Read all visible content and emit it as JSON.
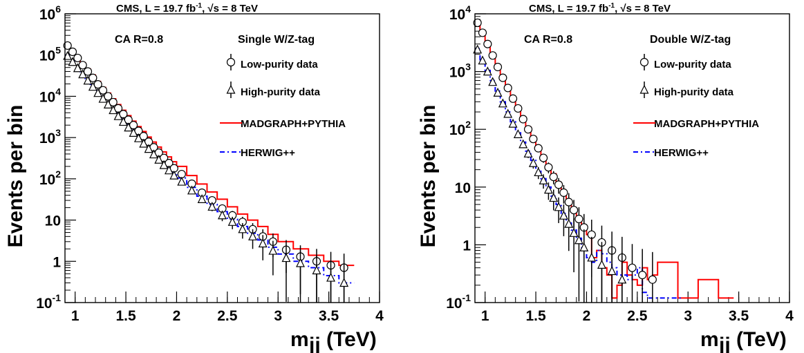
{
  "chart_data": [
    {
      "type": "line",
      "header": "CMS, L = 19.7 fb⁻¹, √s = 8 TeV",
      "ylabel": "Events per bin",
      "xlabel": "m_jj (TeV)",
      "yscale": "log",
      "ylim": [
        0.1,
        1000000
      ],
      "xlim": [
        0.9,
        4.0
      ],
      "xticks": [
        "1",
        "1.5",
        "2",
        "2.5",
        "3",
        "3.5",
        "4"
      ],
      "algo_label": "CA R=0.8",
      "tag_label": "Single W/Z-tag",
      "legend": [
        "Low-purity data",
        "High-purity data",
        "MADGRAPH+PYTHIA",
        "HERWIG++"
      ],
      "bin_edges": [
        0.9,
        0.95,
        1.0,
        1.05,
        1.1,
        1.15,
        1.2,
        1.25,
        1.3,
        1.35,
        1.4,
        1.45,
        1.5,
        1.55,
        1.6,
        1.65,
        1.7,
        1.75,
        1.8,
        1.85,
        1.9,
        1.95,
        2.0,
        2.05,
        2.1,
        2.15,
        2.2,
        2.25,
        2.3,
        2.35,
        2.4,
        2.45,
        2.5,
        2.55,
        2.6,
        2.65,
        2.7,
        2.75,
        2.8,
        2.85,
        2.9,
        2.95,
        3.0,
        3.05,
        3.1,
        3.15,
        3.2,
        3.25,
        3.3,
        3.35,
        3.4,
        3.45,
        3.5,
        3.55,
        3.6,
        3.65,
        3.7,
        3.75,
        3.8,
        3.85,
        3.9,
        3.95,
        4.0
      ],
      "series": [
        {
          "name": "Low-purity data",
          "x": [
            0.9,
            0.95,
            1.0,
            1.05,
            1.1,
            1.15,
            1.2,
            1.25,
            1.3,
            1.35,
            1.4,
            1.45,
            1.5,
            1.55,
            1.6,
            1.65,
            1.7,
            1.75,
            1.8,
            1.85,
            1.9,
            1.95,
            2.0,
            2.1,
            2.2,
            2.3,
            2.4,
            2.5,
            2.6,
            2.7,
            2.8,
            2.9,
            3.0,
            3.15,
            3.3,
            3.45,
            3.6
          ],
          "y": [
            160000,
            120000,
            85000,
            60000,
            42000,
            30000,
            21000,
            15000,
            11000,
            8000,
            5800,
            4200,
            3100,
            2300,
            1700,
            1300,
            950,
            720,
            540,
            410,
            310,
            240,
            185,
            110,
            68,
            45,
            30,
            20,
            12,
            10,
            6,
            4,
            2.5,
            1.6,
            1.2,
            1.0,
            0.8
          ]
        },
        {
          "name": "High-purity data",
          "x": [
            0.9,
            0.95,
            1.0,
            1.05,
            1.1,
            1.15,
            1.2,
            1.25,
            1.3,
            1.35,
            1.4,
            1.45,
            1.5,
            1.55,
            1.6,
            1.65,
            1.7,
            1.75,
            1.8,
            1.85,
            1.9,
            1.95,
            2.0,
            2.1,
            2.2,
            2.3,
            2.4,
            2.5,
            2.6,
            2.7,
            2.8,
            2.9,
            3.0,
            3.15,
            3.3,
            3.45,
            3.6
          ],
          "y": [
            95000,
            70000,
            50000,
            35000,
            25000,
            18000,
            13000,
            9300,
            6800,
            5000,
            3600,
            2600,
            1900,
            1400,
            1050,
            780,
            580,
            430,
            320,
            240,
            180,
            135,
            100,
            60,
            38,
            25,
            17,
            11,
            7,
            5,
            3.5,
            2.3,
            1.5,
            1.0,
            0.6,
            0.4,
            0.3
          ]
        },
        {
          "name": "MADGRAPH+PYTHIA",
          "x": [
            0.9,
            0.95,
            1.0,
            1.05,
            1.1,
            1.15,
            1.2,
            1.25,
            1.3,
            1.35,
            1.4,
            1.45,
            1.5,
            1.55,
            1.6,
            1.65,
            1.7,
            1.75,
            1.8,
            1.85,
            1.9,
            1.95,
            2.0,
            2.1,
            2.2,
            2.3,
            2.4,
            2.5,
            2.6,
            2.7,
            2.8,
            2.9,
            3.0,
            3.15,
            3.3,
            3.45,
            3.6
          ],
          "y": [
            180000,
            130000,
            92000,
            65000,
            46000,
            33000,
            23000,
            16500,
            12000,
            8700,
            6300,
            4600,
            3400,
            2500,
            1850,
            1400,
            1030,
            780,
            590,
            450,
            340,
            260,
            200,
            120,
            75,
            48,
            32,
            21,
            14,
            10,
            7,
            4.5,
            3,
            2,
            1.4,
            1.0,
            0.8
          ]
        },
        {
          "name": "HERWIG++",
          "x": [
            0.9,
            0.95,
            1.0,
            1.05,
            1.1,
            1.15,
            1.2,
            1.25,
            1.3,
            1.35,
            1.4,
            1.45,
            1.5,
            1.55,
            1.6,
            1.65,
            1.7,
            1.75,
            1.8,
            1.85,
            1.9,
            1.95,
            2.0,
            2.1,
            2.2,
            2.3,
            2.4,
            2.5,
            2.6,
            2.7,
            2.8,
            2.9,
            3.0,
            3.15,
            3.3,
            3.45,
            3.6
          ],
          "y": [
            100000,
            75000,
            54000,
            38000,
            27000,
            19500,
            14000,
            10000,
            7300,
            5300,
            3900,
            2800,
            2050,
            1500,
            1100,
            820,
            610,
            450,
            335,
            250,
            185,
            140,
            105,
            62,
            38,
            24,
            16,
            10.5,
            7,
            4.8,
            3.3,
            2.2,
            1.5,
            1.0,
            0.7,
            0.45,
            0.3
          ]
        }
      ],
      "points_low": {
        "x": [
          0.925,
          0.975,
          1.025,
          1.075,
          1.125,
          1.175,
          1.225,
          1.275,
          1.325,
          1.375,
          1.425,
          1.475,
          1.525,
          1.575,
          1.625,
          1.675,
          1.725,
          1.775,
          1.825,
          1.875,
          1.925,
          1.975,
          2.05,
          2.15,
          2.25,
          2.35,
          2.45,
          2.55,
          2.65,
          2.75,
          2.85,
          2.95,
          3.08,
          3.22,
          3.38,
          3.52,
          3.65
        ],
        "y": [
          170000,
          120000,
          85000,
          57000,
          40000,
          28000,
          19500,
          14000,
          10000,
          7200,
          5100,
          3700,
          2700,
          2000,
          1450,
          1080,
          790,
          580,
          430,
          320,
          240,
          180,
          130,
          76,
          46,
          30,
          19,
          13,
          9,
          6,
          4,
          3,
          1.9,
          1.3,
          1.0,
          0.8,
          0.7
        ]
      },
      "points_high": {
        "x": [
          0.925,
          0.975,
          1.025,
          1.075,
          1.125,
          1.175,
          1.225,
          1.275,
          1.325,
          1.375,
          1.425,
          1.475,
          1.525,
          1.575,
          1.625,
          1.675,
          1.725,
          1.775,
          1.825,
          1.875,
          1.925,
          1.975,
          2.05,
          2.15,
          2.25,
          2.35,
          2.45,
          2.55,
          2.65,
          2.75,
          2.85,
          2.95,
          3.08,
          3.22,
          3.38,
          3.52,
          3.65
        ],
        "y": [
          95000,
          68000,
          48000,
          34000,
          24000,
          17000,
          12000,
          8700,
          6300,
          4600,
          3300,
          2400,
          1750,
          1300,
          960,
          710,
          530,
          390,
          290,
          215,
          160,
          120,
          85,
          52,
          32,
          21,
          13,
          9,
          6,
          4,
          2.7,
          1.8,
          1.2,
          0.9,
          0.6,
          0.4,
          0.3
        ]
      }
    },
    {
      "type": "line",
      "header": "CMS, L = 19.7 fb⁻¹, √s = 8 TeV",
      "ylabel": "Events per bin",
      "xlabel": "m_jj (TeV)",
      "yscale": "log",
      "ylim": [
        0.1,
        10000
      ],
      "xlim": [
        0.9,
        4.0
      ],
      "xticks": [
        "1",
        "1.5",
        "2",
        "2.5",
        "3",
        "3.5",
        "4"
      ],
      "algo_label": "CA R=0.8",
      "tag_label": "Double W/Z-tag",
      "legend": [
        "Low-purity data",
        "High-purity data",
        "MADGRAPH+PYTHIA",
        "HERWIG++"
      ]
    }
  ],
  "header_prefix": "CMS, L = 19.7 fb",
  "header_exp": "-1",
  "header_mid": ", √s = 8 TeV",
  "y_axis_label": "Events per bin",
  "x_axis_label_main": "m",
  "x_axis_label_sub": "jj",
  "x_axis_label_unit": "(TeV)",
  "left_y_ticks": [
    "10",
    "1",
    "10",
    "10",
    "10",
    "10",
    "10",
    "10"
  ],
  "colors": {
    "mc_madgraph": "#ff0000",
    "mc_herwig": "#0000ff",
    "data": "#000000"
  }
}
